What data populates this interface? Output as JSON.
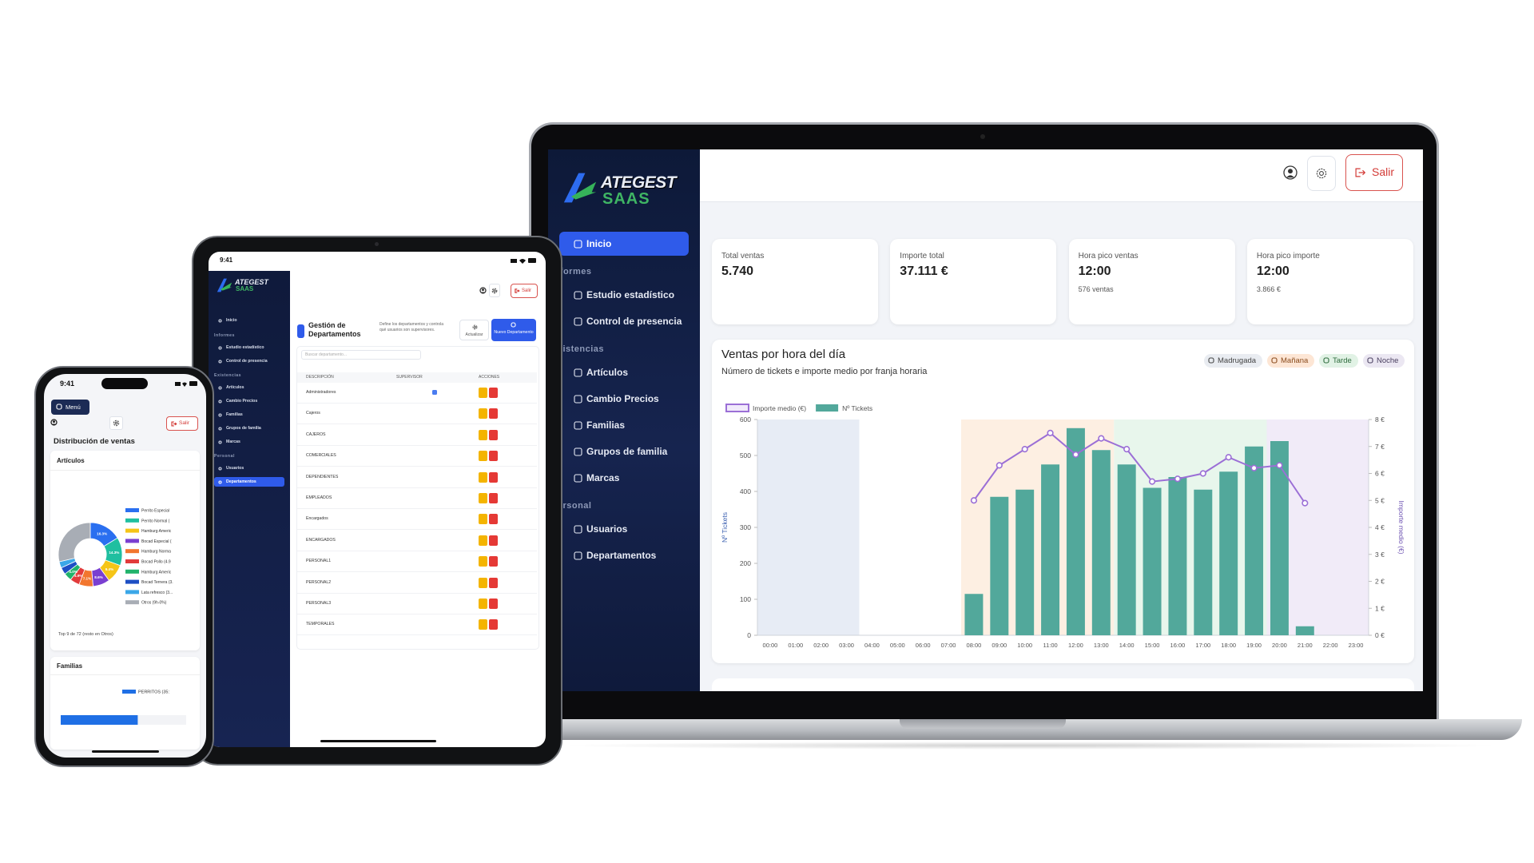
{
  "laptop": {
    "brand": [
      "ATEGEST",
      "SAAS"
    ],
    "nav": {
      "home": "Inicio",
      "sections": [
        {
          "title": "Informes",
          "items": [
            "Estudio estadístico",
            "Control de presencia"
          ]
        },
        {
          "title": "Existencias",
          "items": [
            "Artículos",
            "Cambio Precios",
            "Familias",
            "Grupos de familia",
            "Marcas"
          ]
        },
        {
          "title": "Personal",
          "items": [
            "Usuarios",
            "Departamentos"
          ]
        }
      ]
    },
    "logout": "Salir",
    "kpis": [
      {
        "label": "Total ventas",
        "value": "5.740"
      },
      {
        "label": "Importe total",
        "value": "37.111 €"
      },
      {
        "label": "Hora pico ventas",
        "value": "12:00",
        "note": "576 ventas"
      },
      {
        "label": "Hora pico importe",
        "value": "12:00",
        "note": "3.866 €"
      }
    ]
  },
  "tablet": {
    "status_time": "9:41",
    "brand": [
      "ATEGEST",
      "SAAS"
    ],
    "nav": {
      "home": "Inicio",
      "sections": [
        {
          "title": "Informes",
          "items": [
            "Estudio estadístico",
            "Control de presencia"
          ]
        },
        {
          "title": "Existencias",
          "items": [
            "Artículos",
            "Cambio Precios",
            "Familias",
            "Grupos de familia",
            "Marcas"
          ]
        },
        {
          "title": "Personal",
          "items": [
            "Usuarios",
            "Departamentos"
          ]
        }
      ]
    },
    "logout": "Salir",
    "title": "Gestión de Departamentos",
    "description": "Define los departamentos y controla qué usuarios son supervisores.",
    "buttons": [
      "Actualizar",
      "Nuevo Departamento"
    ],
    "search_placeholder": "Buscar departamento...",
    "columns": [
      "DESCRIPCIÓN",
      "SUPERVISOR",
      "ACCIONES"
    ],
    "rows": [
      {
        "name": "Administradores",
        "supervisor": true
      },
      {
        "name": "Cajeros",
        "supervisor": false
      },
      {
        "name": "CAJEROS",
        "supervisor": false
      },
      {
        "name": "COMERCIALES",
        "supervisor": false
      },
      {
        "name": "DEPENDIENTES",
        "supervisor": false
      },
      {
        "name": "EMPLEADOS",
        "supervisor": false
      },
      {
        "name": "Encargados",
        "supervisor": false
      },
      {
        "name": "ENCARGADOS",
        "supervisor": false
      },
      {
        "name": "PERSONAL1",
        "supervisor": false
      },
      {
        "name": "PERSONAL2",
        "supervisor": false
      },
      {
        "name": "PERSONAL3",
        "supervisor": false
      },
      {
        "name": "TEMPORALES",
        "supervisor": false
      }
    ]
  },
  "phone": {
    "status_time": "9:41",
    "menu": "Menú",
    "logout": "Salir",
    "page_title": "Distribución de ventas"
  },
  "chart_data": [
    {
      "type": "combo",
      "title": "Ventas por hora del día",
      "subtitle": "Número de tickets e importe medio por franja horaria",
      "zones": [
        "Madrugada",
        "Mañana",
        "Tarde",
        "Noche"
      ],
      "categories": [
        "00:00",
        "01:00",
        "02:00",
        "03:00",
        "04:00",
        "05:00",
        "06:00",
        "07:00",
        "08:00",
        "09:00",
        "10:00",
        "11:00",
        "12:00",
        "13:00",
        "14:00",
        "15:00",
        "16:00",
        "17:00",
        "18:00",
        "19:00",
        "20:00",
        "21:00",
        "22:00",
        "23:00"
      ],
      "series": [
        {
          "name": "Importe medio (€)",
          "type": "line",
          "axis": "y2",
          "color": "#9b6fd6",
          "values": [
            null,
            null,
            null,
            null,
            null,
            null,
            null,
            null,
            5.0,
            6.3,
            6.9,
            7.5,
            6.7,
            7.3,
            6.9,
            5.7,
            5.8,
            6.0,
            6.6,
            6.2,
            6.3,
            4.9,
            null,
            null
          ]
        },
        {
          "name": "Nº Tickets",
          "type": "bar",
          "color": "#52a89b",
          "values": [
            0,
            0,
            0,
            0,
            0,
            0,
            0,
            0,
            115,
            385,
            405,
            475,
            576,
            515,
            475,
            410,
            440,
            405,
            455,
            525,
            540,
            25,
            0,
            0
          ]
        }
      ],
      "ylabel": "Nº Tickets",
      "y2label": "Importe medio (€)",
      "ylim": [
        0,
        600
      ],
      "yticks": [
        0,
        100,
        200,
        300,
        400,
        500,
        600
      ],
      "y2lim": [
        0,
        8
      ],
      "y2ticks": [
        {
          "value": 0,
          "label": "0 €"
        },
        {
          "value": 1,
          "label": "1 €"
        },
        {
          "value": 2,
          "label": "2 €"
        },
        {
          "value": 3,
          "label": "3 €"
        },
        {
          "value": 4,
          "label": "4 €"
        },
        {
          "value": 5,
          "label": "5 €"
        },
        {
          "value": 6,
          "label": "6 €"
        },
        {
          "value": 7,
          "label": "7 €"
        },
        {
          "value": 8,
          "label": "8 €"
        }
      ]
    },
    {
      "type": "pie",
      "donut": true,
      "title": "Artículos",
      "categories": [
        "Perrito Especial",
        "Perrito Normal (",
        "Hamburg Americ",
        "Bocad Especial (",
        "Hamburg Norma",
        "Bocad Pollo (4.9",
        "Hamburg Americ",
        "Bocad Ternera (3.",
        "Lata refresco (3...",
        "Otros (9h-0%)"
      ],
      "values": [
        16.3,
        14.3,
        9.4,
        8.6,
        7.1,
        4.9,
        4.0,
        3.6,
        3.2,
        28.6
      ],
      "value_labels": [
        "16.3%",
        "14.3%",
        "9.4%",
        "8.6%",
        "7.1%",
        "4.9%",
        "4.0%",
        null,
        null,
        null
      ],
      "colors": [
        "#2a6ff0",
        "#1fbfa0",
        "#f5c518",
        "#7a3fd1",
        "#f2762e",
        "#e23b3b",
        "#21b36b",
        "#1d4fc4",
        "#3ba7e8",
        "#a8adb5"
      ],
      "note": "Top 9 de 72 (resto en Otros)"
    },
    {
      "type": "hbar",
      "title": "Familias",
      "series": [
        {
          "name": "PERRITOS (35:",
          "color": "#1f6fe5",
          "values": [
            35
          ]
        }
      ],
      "xlim": [
        0,
        57
      ]
    }
  ]
}
